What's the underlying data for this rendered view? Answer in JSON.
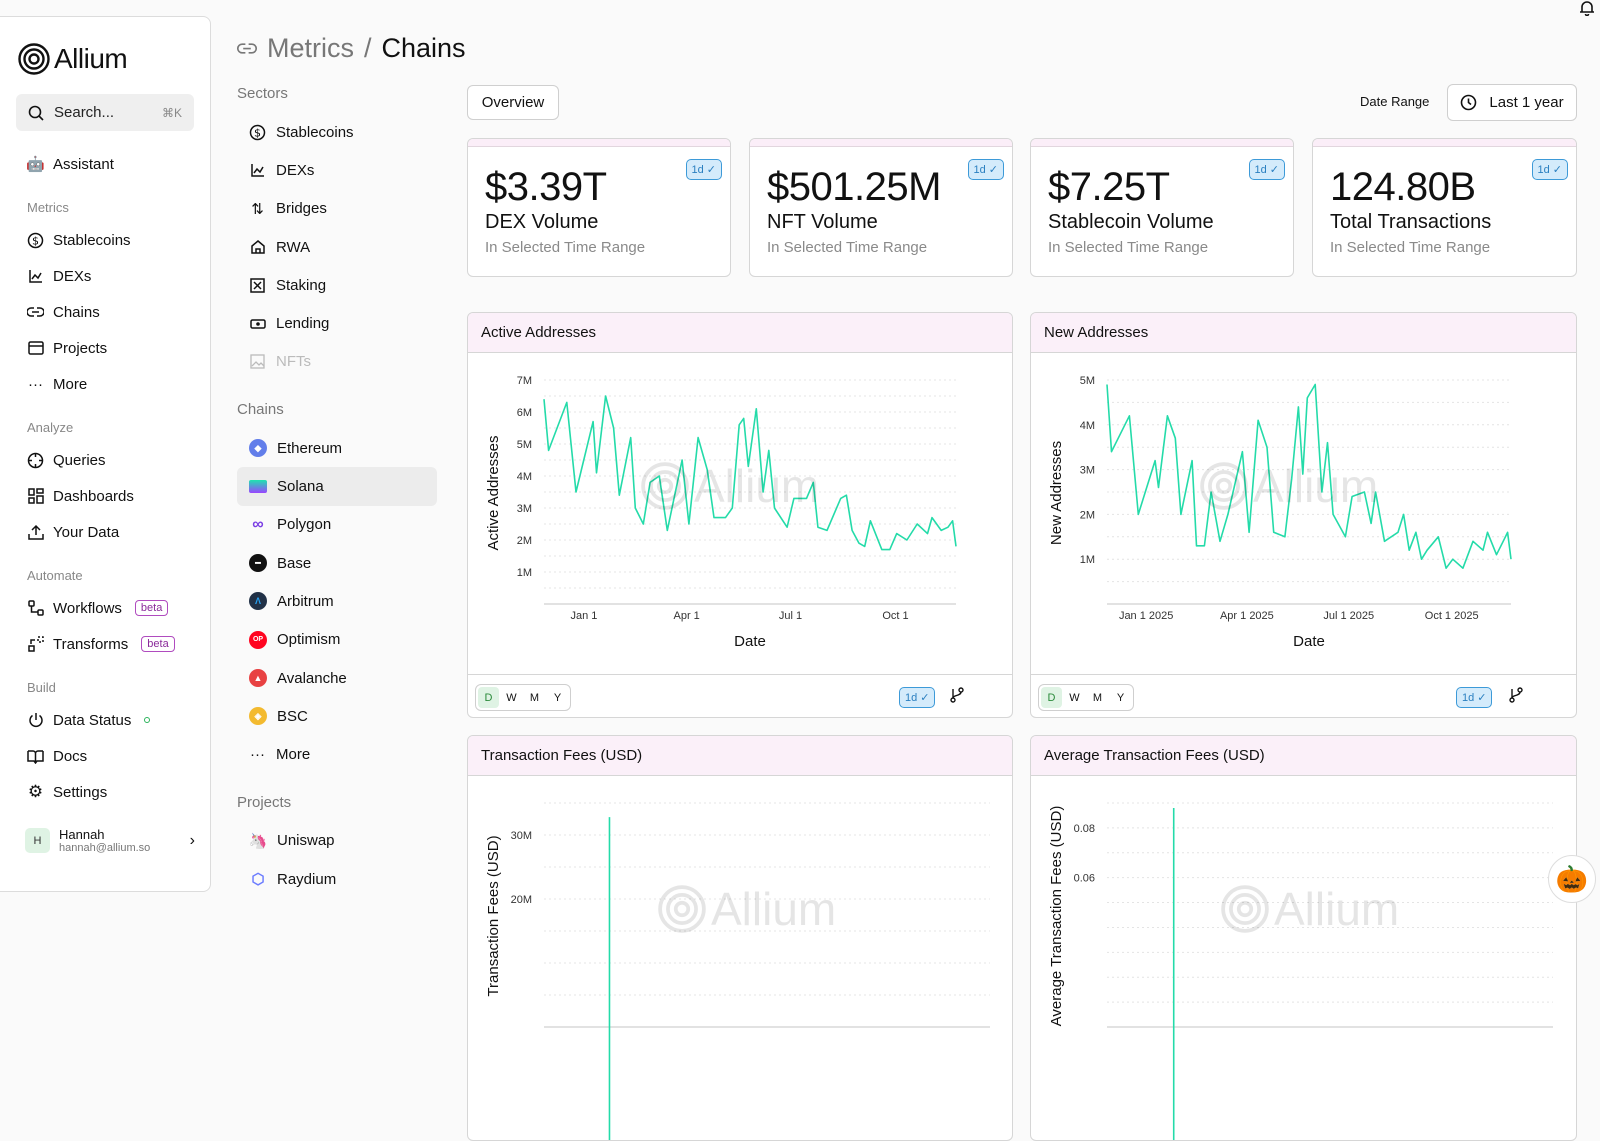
{
  "app": {
    "name": "Allium"
  },
  "search": {
    "placeholder": "Search...",
    "shortcut": "⌘K"
  },
  "sidebar": {
    "assistant": "Assistant",
    "sections": [
      {
        "label": "Metrics",
        "items": [
          {
            "label": "Stablecoins",
            "icon": "dollar-circle-icon"
          },
          {
            "label": "DEXs",
            "icon": "chart-icon"
          },
          {
            "label": "Chains",
            "icon": "link-icon"
          },
          {
            "label": "Projects",
            "icon": "folder-icon"
          },
          {
            "label": "More",
            "icon": "dots-icon"
          }
        ]
      },
      {
        "label": "Analyze",
        "items": [
          {
            "label": "Queries",
            "icon": "crosshair-icon"
          },
          {
            "label": "Dashboards",
            "icon": "grid-icon"
          },
          {
            "label": "Your Data",
            "icon": "upload-icon"
          }
        ]
      },
      {
        "label": "Automate",
        "items": [
          {
            "label": "Workflows",
            "icon": "workflow-icon",
            "badge": "beta"
          },
          {
            "label": "Transforms",
            "icon": "transform-icon",
            "badge": "beta"
          }
        ]
      },
      {
        "label": "Build",
        "items": [
          {
            "label": "Data Status",
            "icon": "power-icon",
            "status_color": "#2bb35b"
          },
          {
            "label": "Docs",
            "icon": "book-icon"
          },
          {
            "label": "Settings",
            "icon": "gear-icon"
          }
        ]
      }
    ],
    "user": {
      "initial": "H",
      "name": "Hannah",
      "email": "hannah@allium.so"
    }
  },
  "breadcrumb": {
    "parent": "Metrics",
    "separator": "/",
    "current": "Chains"
  },
  "subnav": {
    "sectors_label": "Sectors",
    "sectors": [
      {
        "label": "Stablecoins"
      },
      {
        "label": "DEXs"
      },
      {
        "label": "Bridges"
      },
      {
        "label": "RWA"
      },
      {
        "label": "Staking"
      },
      {
        "label": "Lending"
      },
      {
        "label": "NFTs",
        "disabled": true
      }
    ],
    "chains_label": "Chains",
    "chains": [
      {
        "label": "Ethereum",
        "color": "#627eea"
      },
      {
        "label": "Solana",
        "color": "#9945ff",
        "selected": true
      },
      {
        "label": "Polygon",
        "color": "#7b3fe4"
      },
      {
        "label": "Base",
        "color": "#111111"
      },
      {
        "label": "Arbitrum",
        "color": "#213147"
      },
      {
        "label": "Optimism",
        "color": "#ff0420",
        "glyph": "OP"
      },
      {
        "label": "Avalanche",
        "color": "#e84142"
      },
      {
        "label": "BSC",
        "color": "#f3ba2f"
      },
      {
        "label": "More"
      }
    ],
    "projects_label": "Projects",
    "projects": [
      {
        "label": "Uniswap",
        "color": "#ff007a"
      },
      {
        "label": "Raydium",
        "color": "#6b7cff"
      }
    ]
  },
  "toolbar": {
    "overview": "Overview",
    "date_range_label": "Date Range",
    "date_range_value": "Last 1 year"
  },
  "kpis": [
    {
      "value": "$3.39T",
      "label": "DEX Volume",
      "sub": "In Selected Time Range",
      "badge": "1d"
    },
    {
      "value": "$501.25M",
      "label": "NFT Volume",
      "sub": "In Selected Time Range",
      "badge": "1d"
    },
    {
      "value": "$7.25T",
      "label": "Stablecoin Volume",
      "sub": "In Selected Time Range",
      "badge": "1d"
    },
    {
      "value": "124.80B",
      "label": "Total Transactions",
      "sub": "In Selected Time Range",
      "badge": "1d"
    }
  ],
  "granularity": [
    "D",
    "W",
    "M",
    "Y"
  ],
  "granularity_selected": "D",
  "freshness_badge": "1d",
  "watermark": "Allium",
  "colors": {
    "line": "#24dba9",
    "accent_pink": "#fbf0f9",
    "badge_blue": "#3d9ad8"
  },
  "chart_data": [
    {
      "type": "line",
      "title": "Active Addresses",
      "xlabel": "Date",
      "ylabel": "Active Addresses",
      "ylim": [
        0,
        7000000
      ],
      "grid": true,
      "grid_step": 500000,
      "yticks": [
        {
          "value": 1000000,
          "label": "1M"
        },
        {
          "value": 2000000,
          "label": "2M"
        },
        {
          "value": 3000000,
          "label": "3M"
        },
        {
          "value": 4000000,
          "label": "4M"
        },
        {
          "value": 5000000,
          "label": "5M"
        },
        {
          "value": 6000000,
          "label": "6M"
        },
        {
          "value": 7000000,
          "label": "7M"
        }
      ],
      "xticks": [
        {
          "date": "2025-01-01",
          "label": "Jan 1"
        },
        {
          "date": "2025-04-01",
          "label": "Apr 1"
        },
        {
          "date": "2025-07-01",
          "label": "Jul 1"
        },
        {
          "date": "2025-10-01",
          "label": "Oct 1"
        }
      ],
      "x": [
        "2024-11-27",
        "2024-12-01",
        "2024-12-17",
        "2024-12-25",
        "2025-01-09",
        "2025-01-12",
        "2025-01-20",
        "2025-01-27",
        "2025-02-01",
        "2025-02-11",
        "2025-02-15",
        "2025-02-22",
        "2025-02-28",
        "2025-03-08",
        "2025-03-15",
        "2025-03-28",
        "2025-04-03",
        "2025-04-11",
        "2025-04-19",
        "2025-04-25",
        "2025-05-05",
        "2025-05-11",
        "2025-05-17",
        "2025-05-21",
        "2025-05-25",
        "2025-06-01",
        "2025-06-07",
        "2025-06-12",
        "2025-06-17",
        "2025-06-28",
        "2025-07-04",
        "2025-07-15",
        "2025-07-21",
        "2025-07-25",
        "2025-08-02",
        "2025-08-14",
        "2025-08-19",
        "2025-08-24",
        "2025-08-30",
        "2025-09-04",
        "2025-09-09",
        "2025-09-19",
        "2025-09-26",
        "2025-10-02",
        "2025-10-11",
        "2025-10-20",
        "2025-10-29",
        "2025-11-02",
        "2025-11-10",
        "2025-11-16",
        "2025-11-20",
        "2025-11-23"
      ],
      "y": [
        6400000,
        4800000,
        6300000,
        3500000,
        5700000,
        4100000,
        6500000,
        5500000,
        3400000,
        5200000,
        3000000,
        2500000,
        3800000,
        4000000,
        2300000,
        4500000,
        2500000,
        5200000,
        4200000,
        2700000,
        2700000,
        3000000,
        5600000,
        5800000,
        4300000,
        6100000,
        3500000,
        4800000,
        3000000,
        2400000,
        3300000,
        3300000,
        3800000,
        2400000,
        2300000,
        3300000,
        3400000,
        2300000,
        1900000,
        1800000,
        2600000,
        1700000,
        1700000,
        2200000,
        2000000,
        2500000,
        2200000,
        2700000,
        2300000,
        2400000,
        2600000,
        1800000
      ]
    },
    {
      "type": "line",
      "title": "New Addresses",
      "xlabel": "Date",
      "ylabel": "New Addresses",
      "ylim": [
        0,
        5000000
      ],
      "grid": true,
      "grid_step": 500000,
      "yticks": [
        {
          "value": 1000000,
          "label": "1M"
        },
        {
          "value": 2000000,
          "label": "2M"
        },
        {
          "value": 3000000,
          "label": "3M"
        },
        {
          "value": 4000000,
          "label": "4M"
        },
        {
          "value": 5000000,
          "label": "5M"
        }
      ],
      "xticks": [
        {
          "date": "2025-01-01",
          "label": "Jan 1 2025"
        },
        {
          "date": "2025-04-01",
          "label": "Apr 1 2025"
        },
        {
          "date": "2025-07-01",
          "label": "Jul 1 2025"
        },
        {
          "date": "2025-10-01",
          "label": "Oct 1 2025"
        }
      ],
      "x": [
        "2024-11-27",
        "2024-12-01",
        "2024-12-17",
        "2024-12-25",
        "2025-01-09",
        "2025-01-12",
        "2025-01-20",
        "2025-01-27",
        "2025-02-01",
        "2025-02-11",
        "2025-02-15",
        "2025-02-22",
        "2025-02-28",
        "2025-03-08",
        "2025-03-15",
        "2025-03-28",
        "2025-04-03",
        "2025-04-11",
        "2025-04-19",
        "2025-04-25",
        "2025-05-05",
        "2025-05-11",
        "2025-05-17",
        "2025-05-21",
        "2025-05-25",
        "2025-06-01",
        "2025-06-07",
        "2025-06-12",
        "2025-06-17",
        "2025-06-28",
        "2025-07-04",
        "2025-07-15",
        "2025-07-21",
        "2025-07-25",
        "2025-08-02",
        "2025-08-14",
        "2025-08-19",
        "2025-08-24",
        "2025-08-30",
        "2025-09-04",
        "2025-09-09",
        "2025-09-19",
        "2025-09-26",
        "2025-10-02",
        "2025-10-11",
        "2025-10-20",
        "2025-10-29",
        "2025-11-02",
        "2025-11-10",
        "2025-11-16",
        "2025-11-20",
        "2025-11-23"
      ],
      "y": [
        4900000,
        3400000,
        4200000,
        2000000,
        3200000,
        2600000,
        4200000,
        3700000,
        2000000,
        3200000,
        1300000,
        1300000,
        2500000,
        1400000,
        2000000,
        3400000,
        1600000,
        4100000,
        3500000,
        1600000,
        1500000,
        2800000,
        4400000,
        2900000,
        4600000,
        4900000,
        2500000,
        3600000,
        2000000,
        1500000,
        2400000,
        2500000,
        1800000,
        2500000,
        1400000,
        1600000,
        2000000,
        1200000,
        1600000,
        1000000,
        1200000,
        1500000,
        800000,
        1000000,
        800000,
        1400000,
        1200000,
        1600000,
        1100000,
        1400000,
        1600000,
        1000000
      ]
    },
    {
      "type": "line",
      "title": "Transaction Fees (USD)",
      "ylabel": "Transaction Fees (USD)",
      "ylim": [
        0,
        35000000
      ],
      "grid": true,
      "grid_step": 5000000,
      "yticks": [
        {
          "value": 20000000,
          "label": "20M"
        },
        {
          "value": 30000000,
          "label": "30M"
        }
      ],
      "x": [
        "2024-11-27",
        "2025-01-19",
        "2025-11-23"
      ],
      "y": [
        null,
        32800000,
        null
      ]
    },
    {
      "type": "line",
      "title": "Average Transaction Fees (USD)",
      "ylabel": "Average Transaction Fees (USD)",
      "ylim": [
        0,
        0.09
      ],
      "grid": true,
      "grid_step": 0.01,
      "yticks": [
        {
          "value": 0.06,
          "label": "0.06"
        },
        {
          "value": 0.08,
          "label": "0.08"
        }
      ],
      "x": [
        "2024-11-27",
        "2025-01-20",
        "2025-11-23"
      ],
      "y": [
        null,
        0.088,
        null
      ]
    }
  ]
}
